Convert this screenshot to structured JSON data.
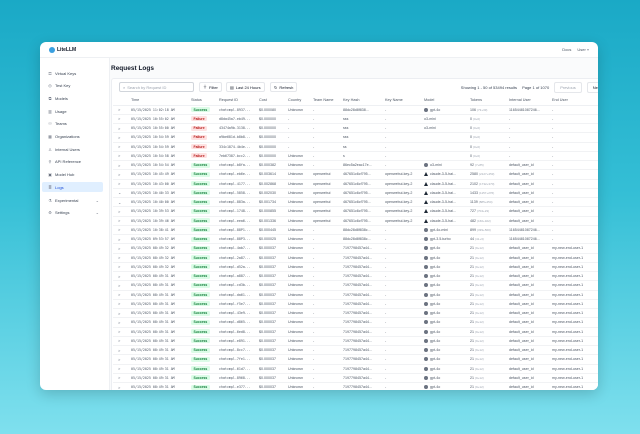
{
  "app": {
    "name": "LiteLLM",
    "docs": "Docs",
    "user": "User",
    "user_chevron": "▾"
  },
  "sidebar": {
    "items": [
      {
        "label": "Virtual Keys",
        "icon": "key-icon",
        "glyph": "⚿"
      },
      {
        "label": "Test Key",
        "icon": "play-icon",
        "glyph": "◎"
      },
      {
        "label": "Models",
        "icon": "models-icon",
        "glyph": "⧉"
      },
      {
        "label": "Usage",
        "icon": "chart-icon",
        "glyph": "▥"
      },
      {
        "label": "Teams",
        "icon": "team-icon",
        "glyph": "⚇"
      },
      {
        "label": "Organizations",
        "icon": "building-icon",
        "glyph": "▦"
      },
      {
        "label": "Internal Users",
        "icon": "user-icon",
        "glyph": "♙"
      },
      {
        "label": "API Reference",
        "icon": "api-icon",
        "glyph": "⚲"
      },
      {
        "label": "Model Hub",
        "icon": "hub-icon",
        "glyph": "▣"
      },
      {
        "label": "Logs",
        "icon": "logs-icon",
        "glyph": "≣",
        "active": true
      },
      {
        "label": "Experimental",
        "icon": "flask-icon",
        "glyph": "⚗",
        "chevron": "⌄"
      },
      {
        "label": "Settings",
        "icon": "gear-icon",
        "glyph": "⚙",
        "chevron": "⌄"
      }
    ]
  },
  "page": {
    "title": "Request Logs"
  },
  "toolbar": {
    "search_placeholder": "Search by Request ID",
    "filter": "Filter",
    "time_range": "Last 24 Hours",
    "refresh": "Refresh"
  },
  "pagination": {
    "showing": "Showing 1 - 50 of 53494 results",
    "page": "Page 1 of 1070",
    "previous": "Previous",
    "next": "Next"
  },
  "colors": {
    "success_bg": "#dcfce7",
    "success_text": "#15803d",
    "failure_bg": "#fee2e2",
    "failure_text": "#b91c1c",
    "active_nav": "#e0efff"
  },
  "columns": [
    "",
    "Time",
    "Status",
    "Request ID",
    "Cost",
    "Country",
    "Team Name",
    "Key Hash",
    "Key Name",
    "Model",
    "Tokens",
    "Internal User",
    "End User"
  ],
  "rows": [
    {
      "exp": ">",
      "time": "05/15/2025 11:02:18 AM",
      "status": "Success",
      "rid": "chatcmpl-8937...",
      "cost": "$0.000080",
      "country": "Unknown",
      "team": "-",
      "hash": "88dc28d8f838...",
      "kname": "-",
      "model": "gpt-4o",
      "micon": "openai",
      "tokens": "106",
      "tdet": "(73+33)",
      "iuser": "11654481087246...",
      "euser": "-"
    },
    {
      "exp": ">",
      "time": "05/15/2025 10:55:02 AM",
      "status": "Failure",
      "rid": "d8da45a7-eb49...",
      "cost": "$0.000000",
      "country": "-",
      "team": "-",
      "hash": "sss",
      "kname": "-",
      "model": "o3-mini",
      "micon": "",
      "tokens": "0",
      "tdet": "(0+0)",
      "iuser": "-",
      "euser": "-"
    },
    {
      "exp": ">",
      "time": "05/15/2025 10:55:00 AM",
      "status": "Failure",
      "rid": "43474a9b-3138...",
      "cost": "$0.000000",
      "country": "-",
      "team": "-",
      "hash": "sss",
      "kname": "-",
      "model": "o3-mini",
      "micon": "",
      "tokens": "0",
      "tdet": "(0+0)",
      "iuser": "-",
      "euser": "-"
    },
    {
      "exp": ">",
      "time": "05/15/2025 10:54:59 AM",
      "status": "Failure",
      "rid": "a9be681d-b8b8...",
      "cost": "$0.000000",
      "country": "-",
      "team": "-",
      "hash": "sss",
      "kname": "-",
      "model": "",
      "micon": "",
      "tokens": "0",
      "tdet": "(0+0)",
      "iuser": "-",
      "euser": "-"
    },
    {
      "exp": ">",
      "time": "05/15/2025 10:54:59 AM",
      "status": "Failure",
      "rid": "334c1874-4b4e...",
      "cost": "$0.000000",
      "country": "-",
      "team": "-",
      "hash": "ss",
      "kname": "-",
      "model": "",
      "micon": "",
      "tokens": "0",
      "tdet": "(0+0)",
      "iuser": "-",
      "euser": "-"
    },
    {
      "exp": ">",
      "time": "05/15/2025 10:54:58 AM",
      "status": "Failure",
      "rid": "7eb67387-bcc2...",
      "cost": "$0.000000",
      "country": "Unknown",
      "team": "-",
      "hash": "s",
      "kname": "-",
      "model": "",
      "micon": "",
      "tokens": "0",
      "tdet": "(0+0)",
      "iuser": "-",
      "euser": "-"
    },
    {
      "exp": ">",
      "time": "05/15/2025 10:54:54 AM",
      "status": "Success",
      "rid": "chatcmpl-b8fa...",
      "cost": "$0.000382",
      "country": "Unknown",
      "team": "-",
      "hash": "86ec5a2eac17e...",
      "kname": "-",
      "model": "o3-mini",
      "micon": "openai",
      "tokens": "92",
      "tdet": "(7+85)",
      "iuser": "default_user_id",
      "euser": "-"
    },
    {
      "exp": ">",
      "time": "05/15/2025 10:45:49 AM",
      "status": "Success",
      "rid": "chatcmpl-eb6e...",
      "cost": "$0.003614",
      "country": "Unknown",
      "team": "openwebui",
      "hash": "467651c6cf795...",
      "kname": "openwebui-key-2",
      "model": "claude-3-5-hai...",
      "micon": "claude",
      "tokens": "2580",
      "tdet": "(2127+453)",
      "iuser": "default_user_id",
      "euser": "-"
    },
    {
      "exp": ">",
      "time": "05/15/2025 10:43:00 AM",
      "status": "Success",
      "rid": "chatcmpl-4177...",
      "cost": "$0.002868",
      "country": "Unknown",
      "team": "openwebui",
      "hash": "467651c6cf795...",
      "kname": "openwebui-key-2",
      "model": "claude-3-5-hai...",
      "micon": "claude",
      "tokens": "2102",
      "tdet": "(1732+370)",
      "iuser": "default_user_id",
      "euser": "-"
    },
    {
      "exp": "⌄",
      "time": "05/15/2025 10:40:33 AM",
      "status": "Success",
      "rid": "chatcmpl-5858...",
      "cost": "$0.002030",
      "country": "Unknown",
      "team": "openwebui",
      "hash": "467651c6cf795...",
      "kname": "openwebui-key-2",
      "model": "claude-3-5-hai...",
      "micon": "claude",
      "tokens": "1433",
      "tdet": "(1157+276)",
      "iuser": "default_user_id",
      "euser": "-"
    },
    {
      "exp": "⌄",
      "time": "05/15/2025 10:40:00 AM",
      "status": "Success",
      "rid": "chatcmpl-883a...",
      "cost": "$0.001734",
      "country": "Unknown",
      "team": "openwebui",
      "hash": "467651c6cf795...",
      "kname": "openwebui-key-2",
      "model": "claude-3-5-hai...",
      "micon": "claude",
      "tokens": "1139",
      "tdet": "(885+254)",
      "iuser": "default_user_id",
      "euser": "-"
    },
    {
      "exp": ">",
      "time": "05/15/2025 10:39:53 AM",
      "status": "Success",
      "rid": "chatcmpl-1748...",
      "cost": "$0.000855",
      "country": "Unknown",
      "team": "openwebui",
      "hash": "467651c6cf795...",
      "kname": "openwebui-key-2",
      "model": "claude-3-5-hai...",
      "micon": "claude",
      "tokens": "727",
      "tdet": "(704+23)",
      "iuser": "default_user_id",
      "euser": "-"
    },
    {
      "exp": ">",
      "time": "05/15/2025 10:39:46 AM",
      "status": "Success",
      "rid": "chatcmpl-eea6...",
      "cost": "$0.001336",
      "country": "Unknown",
      "team": "openwebui",
      "hash": "467651c6cf795...",
      "kname": "openwebui-key-2",
      "model": "claude-3-5-hai...",
      "micon": "claude",
      "tokens": "482",
      "tdet": "(160+322)",
      "iuser": "default_user_id",
      "euser": "-"
    },
    {
      "exp": ">",
      "time": "05/15/2025 10:38:41 AM",
      "status": "Success",
      "rid": "chatcmpl-88P1...",
      "cost": "$0.000445",
      "country": "Unknown",
      "team": "-",
      "hash": "88dc28d8f838c...",
      "kname": "-",
      "model": "gpt-4o-mini",
      "micon": "openai",
      "tokens": "899",
      "tdet": "(339+560)",
      "iuser": "11654481087246...",
      "euser": "-"
    },
    {
      "exp": ">",
      "time": "05/15/2025 09:53:57 AM",
      "status": "Success",
      "rid": "chatcmpl-88P3...",
      "cost": "$0.000025",
      "country": "Unknown",
      "team": "-",
      "hash": "88dc28d8f838c...",
      "kname": "-",
      "model": "gpt-3.5-turbo",
      "micon": "openai",
      "tokens": "44",
      "tdet": "(41+3)",
      "iuser": "11654481087246...",
      "euser": "-"
    },
    {
      "exp": ">",
      "time": "05/15/2025 08:49:32 AM",
      "status": "Success",
      "rid": "chatcmpl-4ab7...",
      "cost": "$0.000037",
      "country": "Unknown",
      "team": "-",
      "hash": "7197798457a44...",
      "kname": "-",
      "model": "gpt-4o",
      "micon": "openai",
      "tokens": "21",
      "tdet": "(9+12)",
      "iuser": "default_user_id",
      "euser": "my-new-end-user-1"
    },
    {
      "exp": ">",
      "time": "05/15/2025 08:49:32 AM",
      "status": "Success",
      "rid": "chatcmpl-2a87...",
      "cost": "$0.000037",
      "country": "Unknown",
      "team": "-",
      "hash": "7197798457a44...",
      "kname": "-",
      "model": "gpt-4o",
      "micon": "openai",
      "tokens": "21",
      "tdet": "(9+12)",
      "iuser": "default_user_id",
      "euser": "my-new-end-user-1"
    },
    {
      "exp": ">",
      "time": "05/15/2025 08:49:32 AM",
      "status": "Success",
      "rid": "chatcmpl-d52a...",
      "cost": "$0.000037",
      "country": "Unknown",
      "team": "-",
      "hash": "7197798457a44...",
      "kname": "-",
      "model": "gpt-4o",
      "micon": "openai",
      "tokens": "21",
      "tdet": "(9+12)",
      "iuser": "default_user_id",
      "euser": "my-new-end-user-1"
    },
    {
      "exp": ">",
      "time": "05/15/2025 08:49:31 AM",
      "status": "Success",
      "rid": "chatcmpl-a887...",
      "cost": "$0.000037",
      "country": "Unknown",
      "team": "-",
      "hash": "7197798457a44...",
      "kname": "-",
      "model": "gpt-4o",
      "micon": "openai",
      "tokens": "21",
      "tdet": "(9+12)",
      "iuser": "default_user_id",
      "euser": "my-new-end-user-1"
    },
    {
      "exp": ">",
      "time": "05/15/2025 08:49:31 AM",
      "status": "Success",
      "rid": "chatcmpl-cd3b...",
      "cost": "$0.000037",
      "country": "Unknown",
      "team": "-",
      "hash": "7197798457a44...",
      "kname": "-",
      "model": "gpt-4o",
      "micon": "openai",
      "tokens": "21",
      "tdet": "(9+12)",
      "iuser": "default_user_id",
      "euser": "my-new-end-user-1"
    },
    {
      "exp": ">",
      "time": "05/15/2025 08:49:31 AM",
      "status": "Success",
      "rid": "chatcmpl-da61...",
      "cost": "$0.000037",
      "country": "Unknown",
      "team": "-",
      "hash": "7197798457a44...",
      "kname": "-",
      "model": "gpt-4o",
      "micon": "openai",
      "tokens": "21",
      "tdet": "(9+12)",
      "iuser": "default_user_id",
      "euser": "my-new-end-user-1"
    },
    {
      "exp": ">",
      "time": "05/15/2025 08:49:31 AM",
      "status": "Success",
      "rid": "chatcmpl-f5e7...",
      "cost": "$0.000037",
      "country": "Unknown",
      "team": "-",
      "hash": "7197798457a44...",
      "kname": "-",
      "model": "gpt-4o",
      "micon": "openai",
      "tokens": "21",
      "tdet": "(9+12)",
      "iuser": "default_user_id",
      "euser": "my-new-end-user-1"
    },
    {
      "exp": ">",
      "time": "05/15/2025 08:49:31 AM",
      "status": "Success",
      "rid": "chatcmpl-43e9...",
      "cost": "$0.000037",
      "country": "Unknown",
      "team": "-",
      "hash": "7197798457a44...",
      "kname": "-",
      "model": "gpt-4o",
      "micon": "openai",
      "tokens": "21",
      "tdet": "(9+12)",
      "iuser": "default_user_id",
      "euser": "my-new-end-user-1"
    },
    {
      "exp": ">",
      "time": "05/15/2025 08:49:31 AM",
      "status": "Success",
      "rid": "chatcmpl-d865...",
      "cost": "$0.000037",
      "country": "Unknown",
      "team": "-",
      "hash": "7197798457a44...",
      "kname": "-",
      "model": "gpt-4o",
      "micon": "openai",
      "tokens": "21",
      "tdet": "(9+12)",
      "iuser": "default_user_id",
      "euser": "my-new-end-user-1"
    },
    {
      "exp": ">",
      "time": "05/15/2025 08:49:31 AM",
      "status": "Success",
      "rid": "chatcmpl-6ed8...",
      "cost": "$0.000037",
      "country": "Unknown",
      "team": "-",
      "hash": "7197798457a44...",
      "kname": "-",
      "model": "gpt-4o",
      "micon": "openai",
      "tokens": "21",
      "tdet": "(9+12)",
      "iuser": "default_user_id",
      "euser": "my-new-end-user-1"
    },
    {
      "exp": ">",
      "time": "05/15/2025 08:49:31 AM",
      "status": "Success",
      "rid": "chatcmpl-e891...",
      "cost": "$0.000037",
      "country": "Unknown",
      "team": "-",
      "hash": "7197798457a44...",
      "kname": "-",
      "model": "gpt-4o",
      "micon": "openai",
      "tokens": "21",
      "tdet": "(9+12)",
      "iuser": "default_user_id",
      "euser": "my-new-end-user-1"
    },
    {
      "exp": ">",
      "time": "05/15/2025 08:49:31 AM",
      "status": "Success",
      "rid": "chatcmpl-8cc7...",
      "cost": "$0.000037",
      "country": "Unknown",
      "team": "-",
      "hash": "7197798457a44...",
      "kname": "-",
      "model": "gpt-4o",
      "micon": "openai",
      "tokens": "21",
      "tdet": "(9+12)",
      "iuser": "default_user_id",
      "euser": "my-new-end-user-1"
    },
    {
      "exp": ">",
      "time": "05/15/2025 08:49:31 AM",
      "status": "Success",
      "rid": "chatcmpl-7fe1...",
      "cost": "$0.000037",
      "country": "Unknown",
      "team": "-",
      "hash": "7197798457a44...",
      "kname": "-",
      "model": "gpt-4o",
      "micon": "openai",
      "tokens": "21",
      "tdet": "(9+12)",
      "iuser": "default_user_id",
      "euser": "my-new-end-user-1"
    },
    {
      "exp": ">",
      "time": "05/15/2025 08:49:31 AM",
      "status": "Success",
      "rid": "chatcmpl-61d7...",
      "cost": "$0.000037",
      "country": "Unknown",
      "team": "-",
      "hash": "7197798457a44...",
      "kname": "-",
      "model": "gpt-4o",
      "micon": "openai",
      "tokens": "21",
      "tdet": "(9+12)",
      "iuser": "default_user_id",
      "euser": "my-new-end-user-1"
    },
    {
      "exp": ">",
      "time": "05/15/2025 08:49:31 AM",
      "status": "Success",
      "rid": "chatcmpl-8968...",
      "cost": "$0.000037",
      "country": "Unknown",
      "team": "-",
      "hash": "7197798457a44...",
      "kname": "-",
      "model": "gpt-4o",
      "micon": "openai",
      "tokens": "21",
      "tdet": "(9+12)",
      "iuser": "default_user_id",
      "euser": "my-new-end-user-1"
    },
    {
      "exp": ">",
      "time": "05/15/2025 08:49:31 AM",
      "status": "Success",
      "rid": "chatcmpl-e377...",
      "cost": "$0.000037",
      "country": "Unknown",
      "team": "-",
      "hash": "7197798457a44...",
      "kname": "-",
      "model": "gpt-4o",
      "micon": "openai",
      "tokens": "21",
      "tdet": "(9+12)",
      "iuser": "default_user_id",
      "euser": "my-new-end-user-1"
    }
  ]
}
